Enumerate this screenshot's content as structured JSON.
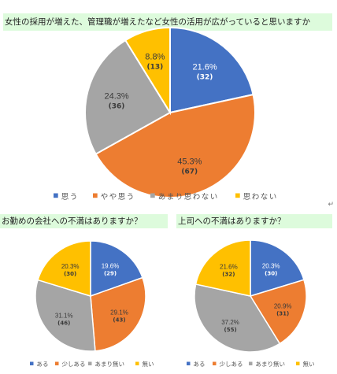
{
  "headers": {
    "q1": "女性の採用が増えた、管理職が増えたなど女性の活用が広がっていると思いますか",
    "q2": "お勤めの会社への不満はありますか？",
    "q3": "上司への不満はありますか？"
  },
  "return_mark": "↵",
  "chart_data": [
    {
      "type": "pie",
      "title": "女性の採用が増えた、管理職が増えたなど女性の活用が広がっていると思いますか",
      "categories": [
        "思う",
        "やや思う",
        "あまり思わない",
        "思わない"
      ],
      "percent_labels": [
        "21.6%",
        "45.3%",
        "24.3%",
        "8.8%"
      ],
      "values": [
        21.6,
        45.3,
        24.3,
        8.8
      ],
      "counts": [
        32,
        67,
        36,
        13
      ],
      "colors": [
        "#4472c4",
        "#ed7d31",
        "#a5a5a5",
        "#ffc000"
      ],
      "legend": "bottom"
    },
    {
      "type": "pie",
      "title": "お勤めの会社への不満はありますか？",
      "categories": [
        "ある",
        "少しある",
        "あまり無い",
        "無い"
      ],
      "percent_labels": [
        "19.6%",
        "29.1%",
        "31.1%",
        "20.3%"
      ],
      "values": [
        19.6,
        29.1,
        31.1,
        20.3
      ],
      "counts": [
        29,
        43,
        46,
        30
      ],
      "colors": [
        "#4472c4",
        "#ed7d31",
        "#a5a5a5",
        "#ffc000"
      ],
      "legend": "bottom"
    },
    {
      "type": "pie",
      "title": "上司への不満はありますか？",
      "categories": [
        "ある",
        "少しある",
        "あまり無い",
        "無い"
      ],
      "percent_labels": [
        "20.3%",
        "20.9%",
        "37.2%",
        "21.6%"
      ],
      "values": [
        20.3,
        20.9,
        37.2,
        21.6
      ],
      "counts": [
        30,
        31,
        55,
        32
      ],
      "colors": [
        "#4472c4",
        "#ed7d31",
        "#a5a5a5",
        "#ffc000"
      ],
      "legend": "bottom"
    }
  ]
}
